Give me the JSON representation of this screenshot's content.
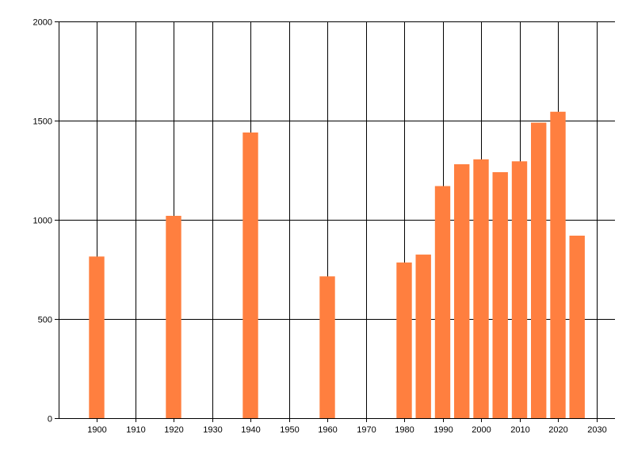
{
  "chart_data": {
    "type": "bar",
    "title": "",
    "xlabel": "",
    "ylabel": "",
    "x": [
      1900,
      1920,
      1940,
      1960,
      1980,
      1985,
      1990,
      1995,
      2000,
      2005,
      2010,
      2015,
      2020,
      2025
    ],
    "values": [
      815,
      1020,
      1440,
      715,
      785,
      825,
      1170,
      1280,
      1305,
      1240,
      1295,
      1490,
      1545,
      920
    ],
    "xlim": [
      1890,
      2035
    ],
    "ylim": [
      0,
      2000
    ],
    "x_ticks": [
      1900,
      1910,
      1920,
      1930,
      1940,
      1950,
      1960,
      1970,
      1980,
      1990,
      2000,
      2010,
      2020,
      2030
    ],
    "x_gridlines": [
      1880,
      1890,
      1900,
      1910,
      1920,
      1930,
      1940,
      1950,
      1960,
      1970,
      1980,
      1990,
      2000,
      2010,
      2020,
      2030
    ],
    "y_ticks": [
      0,
      500,
      1000,
      1500,
      2000
    ],
    "bar_width_years": 4,
    "grid": true,
    "legend": "none",
    "bar_color": "#ff7f3f",
    "grid_color": "#000000"
  }
}
